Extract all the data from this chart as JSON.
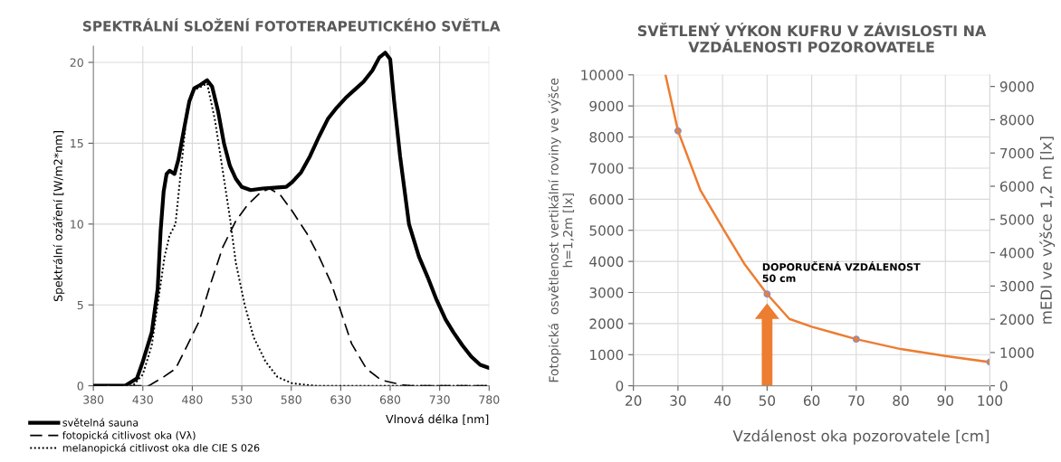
{
  "chart_data": [
    {
      "type": "line",
      "title": "SPEKTRÁLNÍ SLOŽENÍ FOTOTERAPEUTICKÉHO SVĚTLA",
      "xlabel": "Vlnová délka [nm]",
      "ylabel": "Spektrální ozáření [W/m2*nm]",
      "xlim": [
        380,
        780
      ],
      "xticks": [
        380,
        430,
        480,
        530,
        580,
        630,
        680,
        730,
        780
      ],
      "ylim": [
        0,
        21
      ],
      "yticks": [
        0,
        5,
        10,
        15,
        20
      ],
      "grid": true,
      "legend": "bottom left",
      "marker": "none",
      "series": [
        {
          "name": "světelná sauna",
          "color": "#000000",
          "line_style": "solid",
          "x": [
            380,
            412,
            424,
            430,
            439,
            445,
            448,
            451,
            454,
            457,
            462,
            466,
            472,
            477,
            482,
            488,
            495,
            500,
            506,
            512,
            518,
            524,
            530,
            539,
            551,
            563,
            575,
            581,
            590,
            599,
            608,
            617,
            626,
            635,
            644,
            653,
            662,
            669,
            675,
            680,
            684,
            690,
            699,
            709,
            718,
            727,
            736,
            744,
            753,
            762,
            771,
            780
          ],
          "values": [
            0,
            0,
            0.45,
            1.5,
            3.3,
            6,
            9.6,
            12,
            13.1,
            13.3,
            13.1,
            14,
            16,
            17.6,
            18.4,
            18.6,
            18.9,
            18.5,
            17,
            15,
            13.6,
            12.8,
            12.3,
            12.1,
            12.2,
            12.25,
            12.3,
            12.6,
            13.2,
            14.2,
            15.4,
            16.5,
            17.2,
            17.8,
            18.3,
            18.8,
            19.5,
            20.3,
            20.6,
            20.2,
            17.6,
            14.2,
            10,
            8,
            6.7,
            5.3,
            4.1,
            3.3,
            2.5,
            1.8,
            1.3,
            1.1
          ]
        },
        {
          "name": "fotopická citlivost oka (Vλ)",
          "color": "#000000",
          "line_style": "dashed",
          "x": [
            380,
            436,
            451,
            463,
            475,
            487,
            499,
            511,
            524,
            536,
            548,
            558,
            569,
            581,
            596,
            608,
            620,
            629,
            641,
            656,
            671,
            692,
            701,
            780
          ],
          "values": [
            0,
            0,
            0.55,
            1.05,
            2.5,
            4,
            6.4,
            8.6,
            10.2,
            11.2,
            11.9,
            12.2,
            11.8,
            10.8,
            9.4,
            8,
            6.4,
            4.8,
            2.6,
            1.05,
            0.35,
            0.05,
            0,
            0
          ]
        },
        {
          "name": "melanopická citlivost oka dle CIE S 026",
          "color": "#000000",
          "line_style": "dotted",
          "x": [
            380,
            420,
            430,
            439,
            448,
            452,
            457,
            463,
            469,
            475,
            482,
            489,
            495,
            503,
            510,
            518,
            524,
            533,
            542,
            554,
            566,
            581,
            605,
            780
          ],
          "values": [
            0,
            0,
            0.7,
            2.5,
            6.3,
            8,
            9.3,
            10,
            13.6,
            17.2,
            18.3,
            18.5,
            18.7,
            16.4,
            13.6,
            10.4,
            7.6,
            5,
            3,
            1.5,
            0.55,
            0.15,
            0,
            0
          ]
        }
      ]
    },
    {
      "type": "line",
      "title": "SVĚTLENÝ VÝKON KUFRU V ZÁVISLOSTI NA\nVZDÁLENOSTI POZOROVATELE",
      "xlabel": "Vzdálenost oka pozorovatele [cm]",
      "ylabel": "Fotopická  osvětlenost vertikální roviny ve výšce\nh=1,2m [lx]",
      "y2label": "mEDI ve výšce 1,2 m [lx]",
      "xlim": [
        20,
        100
      ],
      "xticks": [
        20,
        30,
        40,
        50,
        60,
        70,
        80,
        90,
        100
      ],
      "ylim": [
        0,
        10000
      ],
      "yticks": [
        0,
        1000,
        2000,
        3000,
        4000,
        5000,
        6000,
        7000,
        8000,
        9000,
        10000
      ],
      "y2lim": [
        0,
        9350
      ],
      "y2ticks": [
        0,
        1000,
        2000,
        3000,
        4000,
        5000,
        6000,
        7000,
        8000,
        9000
      ],
      "grid": true,
      "annotations": [
        {
          "text": "DOPORUČENÁ VZDÁLENOST\n50 cm",
          "x": 50,
          "y": 2950
        }
      ],
      "series": [
        {
          "type": "line",
          "color": "#ed7d31",
          "marker": "none",
          "x": [
            27.2,
            30,
            35,
            40,
            45,
            50,
            55,
            60,
            65,
            70,
            80,
            90,
            100
          ],
          "values": [
            10000,
            8200,
            6300,
            5080,
            3900,
            2950,
            2150,
            1900,
            1700,
            1500,
            1180,
            960,
            760
          ]
        },
        {
          "type": "scatter",
          "color": "#8e8ec0",
          "marker": "circle",
          "x": [
            30,
            50,
            70,
            100
          ],
          "values": [
            8200,
            2950,
            1500,
            760
          ]
        }
      ]
    }
  ]
}
